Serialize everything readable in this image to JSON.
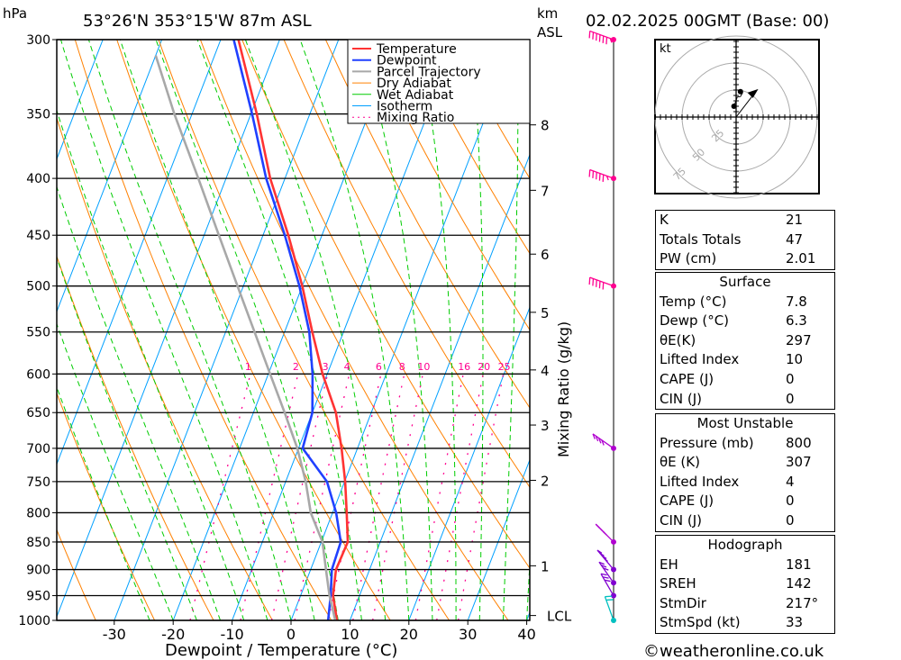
{
  "header": {
    "pressure_unit": "hPa",
    "location": "53°26'N  353°15'W  87m  ASL",
    "height_unit_1": "km",
    "height_unit_2": "ASL",
    "datetime": "02.02.2025  00GMT (Base: 00)"
  },
  "footer": {
    "copyright": "©weatheronline.co.uk"
  },
  "colors": {
    "temperature": "#ff3333",
    "dewpoint": "#2040ff",
    "parcel": "#a8a8a8",
    "dry_adiabat": "#ff8000",
    "wet_adiabat": "#00cc00",
    "isotherm": "#00a0ff",
    "mixing_ratio": "#ff0090"
  },
  "chart_data": {
    "type": "line",
    "title": "Skew-T log-P sounding",
    "xlabel": "Dewpoint / Temperature (°C)",
    "ylabel": "hPa",
    "y2label": "Mixing Ratio (g/kg)",
    "xlim": [
      -40,
      40
    ],
    "ylim": [
      1000,
      300
    ],
    "x_ticks": [
      -30,
      -20,
      -10,
      0,
      10,
      20,
      30,
      40
    ],
    "pressure_ticks": [
      300,
      350,
      400,
      450,
      500,
      550,
      600,
      650,
      700,
      750,
      800,
      850,
      900,
      950,
      1000
    ],
    "km_ticks": [
      {
        "label": "8",
        "p": 358
      },
      {
        "label": "7",
        "p": 410
      },
      {
        "label": "6",
        "p": 468
      },
      {
        "label": "5",
        "p": 528
      },
      {
        "label": "4",
        "p": 595
      },
      {
        "label": "3",
        "p": 667
      },
      {
        "label": "2",
        "p": 748
      },
      {
        "label": "1",
        "p": 893
      },
      {
        "label": "LCL",
        "p": 990
      }
    ],
    "mixing_ratio_labels": [
      1,
      2,
      3,
      4,
      6,
      8,
      10,
      16,
      20,
      25
    ],
    "legend": [
      "Temperature",
      "Dewpoint",
      "Parcel Trajectory",
      "Dry Adiabat",
      "Wet Adiabat",
      "Isotherm",
      "Mixing Ratio"
    ],
    "legend_position": "top-right",
    "series": [
      {
        "name": "Temperature",
        "points": [
          [
            1000,
            7.8
          ],
          [
            950,
            5.5
          ],
          [
            900,
            4.3
          ],
          [
            850,
            4.5
          ],
          [
            800,
            2.4
          ],
          [
            750,
            0.1
          ],
          [
            700,
            -2.7
          ],
          [
            650,
            -6.0
          ],
          [
            600,
            -10.8
          ],
          [
            550,
            -15.3
          ],
          [
            500,
            -20.0
          ],
          [
            450,
            -25.7
          ],
          [
            400,
            -32.5
          ],
          [
            350,
            -39.0
          ],
          [
            300,
            -47.0
          ]
        ]
      },
      {
        "name": "Dewpoint",
        "points": [
          [
            1000,
            6.3
          ],
          [
            950,
            5.1
          ],
          [
            900,
            3.6
          ],
          [
            850,
            3.3
          ],
          [
            800,
            0.6
          ],
          [
            750,
            -3.0
          ],
          [
            700,
            -9.3
          ],
          [
            650,
            -10.0
          ],
          [
            600,
            -12.5
          ],
          [
            550,
            -15.8
          ],
          [
            500,
            -20.5
          ],
          [
            450,
            -26.3
          ],
          [
            400,
            -33.2
          ],
          [
            350,
            -39.8
          ],
          [
            300,
            -47.8
          ]
        ]
      },
      {
        "name": "Parcel Trajectory",
        "points": [
          [
            1000,
            7.5
          ],
          [
            950,
            4.9
          ],
          [
            900,
            2.6
          ],
          [
            850,
            0.2
          ],
          [
            800,
            -3.7
          ],
          [
            750,
            -6.6
          ],
          [
            700,
            -10.2
          ],
          [
            650,
            -14.7
          ],
          [
            600,
            -19.7
          ],
          [
            550,
            -25.1
          ],
          [
            500,
            -31.0
          ],
          [
            450,
            -37.5
          ],
          [
            400,
            -44.7
          ],
          [
            350,
            -53.0
          ],
          [
            310,
            -60.0
          ]
        ]
      }
    ],
    "winds": [
      {
        "p": 300,
        "dir": 250,
        "kt": 65,
        "color": "#ff0090"
      },
      {
        "p": 400,
        "dir": 250,
        "kt": 55,
        "color": "#ff0090"
      },
      {
        "p": 500,
        "dir": 250,
        "kt": 50,
        "color": "#ff0090"
      },
      {
        "p": 700,
        "dir": 235,
        "kt": 40,
        "color": "#b000d0"
      },
      {
        "p": 850,
        "dir": 225,
        "kt": 35,
        "color": "#b000d0"
      },
      {
        "p": 900,
        "dir": 220,
        "kt": 35,
        "color": "#8000d0"
      },
      {
        "p": 925,
        "dir": 215,
        "kt": 30,
        "color": "#8000d0"
      },
      {
        "p": 950,
        "dir": 210,
        "kt": 30,
        "color": "#8000d0"
      },
      {
        "p": 1000,
        "dir": 200,
        "kt": 20,
        "color": "#00c0c0"
      }
    ],
    "hodograph": {
      "unit_label": "kt",
      "rings": [
        25,
        50,
        75
      ],
      "trace_kt": [
        [
          -4,
          20
        ],
        [
          -1,
          28
        ],
        [
          2,
          37
        ],
        [
          8,
          38
        ],
        [
          12,
          45
        ],
        [
          8,
          47
        ],
        [
          10,
          49
        ]
      ],
      "storm_motion_kt": [
        20,
        26
      ]
    }
  },
  "indices": [
    {
      "label": "K",
      "value": "21"
    },
    {
      "label": "Totals Totals",
      "value": "47"
    },
    {
      "label": "PW (cm)",
      "value": "2.01"
    }
  ],
  "surface": {
    "title": "Surface",
    "rows": [
      {
        "label": "Temp (°C)",
        "value": "7.8"
      },
      {
        "label": "Dewp (°C)",
        "value": "6.3"
      },
      {
        "label": "θE(K)",
        "value": "297"
      },
      {
        "label": "Lifted Index",
        "value": "10"
      },
      {
        "label": "CAPE (J)",
        "value": "0"
      },
      {
        "label": "CIN (J)",
        "value": "0"
      }
    ]
  },
  "most_unstable": {
    "title": "Most Unstable",
    "rows": [
      {
        "label": "Pressure (mb)",
        "value": "800"
      },
      {
        "label": "θE (K)",
        "value": "307"
      },
      {
        "label": "Lifted Index",
        "value": "4"
      },
      {
        "label": "CAPE (J)",
        "value": "0"
      },
      {
        "label": "CIN (J)",
        "value": "0"
      }
    ]
  },
  "hodograph_table": {
    "title": "Hodograph",
    "rows": [
      {
        "label": "EH",
        "value": "181"
      },
      {
        "label": "SREH",
        "value": "142"
      },
      {
        "label": "StmDir",
        "value": "217°"
      },
      {
        "label": "StmSpd (kt)",
        "value": "33"
      }
    ]
  }
}
